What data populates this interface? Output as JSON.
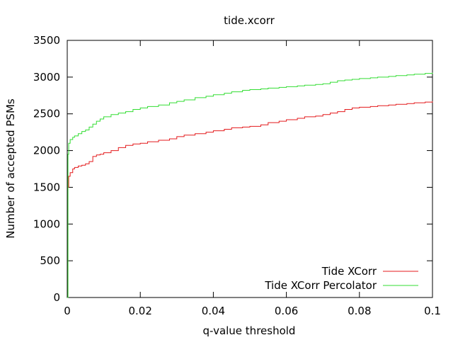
{
  "chart_data": {
    "type": "line",
    "title": "tide.xcorr",
    "xlabel": "q-value threshold",
    "ylabel": "Number of accepted PSMs",
    "xlim": [
      0,
      0.1
    ],
    "ylim": [
      0,
      3500
    ],
    "x_ticks": [
      0,
      0.02,
      0.04,
      0.06,
      0.08,
      0.1
    ],
    "x_tick_labels": [
      "0",
      "0.02",
      "0.04",
      "0.06",
      "0.08",
      "0.1"
    ],
    "y_ticks": [
      0,
      500,
      1000,
      1500,
      2000,
      2500,
      3000,
      3500
    ],
    "y_tick_labels": [
      "0",
      "500",
      "1000",
      "1500",
      "2000",
      "2500",
      "3000",
      "3500"
    ],
    "grid": false,
    "legend_position": "bottom-right",
    "series": [
      {
        "name": "Tide XCorr",
        "color": "#e41a1c",
        "x": [
          0,
          0.0002,
          0.0004,
          0.0008,
          0.0015,
          0.002,
          0.003,
          0.004,
          0.005,
          0.006,
          0.007,
          0.008,
          0.009,
          0.01,
          0.012,
          0.014,
          0.016,
          0.018,
          0.02,
          0.022,
          0.025,
          0.028,
          0.03,
          0.032,
          0.035,
          0.038,
          0.04,
          0.043,
          0.045,
          0.048,
          0.05,
          0.053,
          0.055,
          0.058,
          0.06,
          0.063,
          0.065,
          0.068,
          0.07,
          0.072,
          0.074,
          0.076,
          0.078,
          0.08,
          0.083,
          0.085,
          0.088,
          0.09,
          0.093,
          0.095,
          0.098,
          0.1
        ],
        "values": [
          0,
          1500,
          1650,
          1700,
          1750,
          1770,
          1790,
          1800,
          1820,
          1850,
          1920,
          1940,
          1950,
          1970,
          2000,
          2040,
          2070,
          2090,
          2100,
          2120,
          2140,
          2160,
          2190,
          2210,
          2230,
          2250,
          2270,
          2290,
          2310,
          2320,
          2330,
          2350,
          2380,
          2400,
          2420,
          2440,
          2460,
          2470,
          2490,
          2510,
          2530,
          2560,
          2580,
          2590,
          2600,
          2610,
          2620,
          2630,
          2640,
          2650,
          2660,
          2670
        ]
      },
      {
        "name": "Tide XCorr Percolator",
        "color": "#33dd33",
        "x": [
          0,
          0.0002,
          0.0004,
          0.0008,
          0.0015,
          0.002,
          0.003,
          0.004,
          0.005,
          0.006,
          0.007,
          0.008,
          0.009,
          0.01,
          0.012,
          0.014,
          0.016,
          0.018,
          0.02,
          0.022,
          0.025,
          0.028,
          0.03,
          0.032,
          0.035,
          0.038,
          0.04,
          0.043,
          0.045,
          0.048,
          0.05,
          0.053,
          0.055,
          0.058,
          0.06,
          0.063,
          0.065,
          0.068,
          0.07,
          0.072,
          0.074,
          0.076,
          0.078,
          0.08,
          0.083,
          0.085,
          0.088,
          0.09,
          0.093,
          0.095,
          0.098,
          0.1
        ],
        "values": [
          0,
          1950,
          2100,
          2150,
          2180,
          2200,
          2230,
          2260,
          2280,
          2320,
          2360,
          2400,
          2430,
          2460,
          2490,
          2510,
          2530,
          2560,
          2580,
          2600,
          2620,
          2650,
          2670,
          2690,
          2720,
          2740,
          2760,
          2780,
          2800,
          2820,
          2830,
          2840,
          2850,
          2860,
          2870,
          2880,
          2890,
          2900,
          2910,
          2930,
          2950,
          2960,
          2970,
          2980,
          2990,
          3000,
          3010,
          3020,
          3030,
          3040,
          3050,
          3060
        ]
      }
    ]
  }
}
